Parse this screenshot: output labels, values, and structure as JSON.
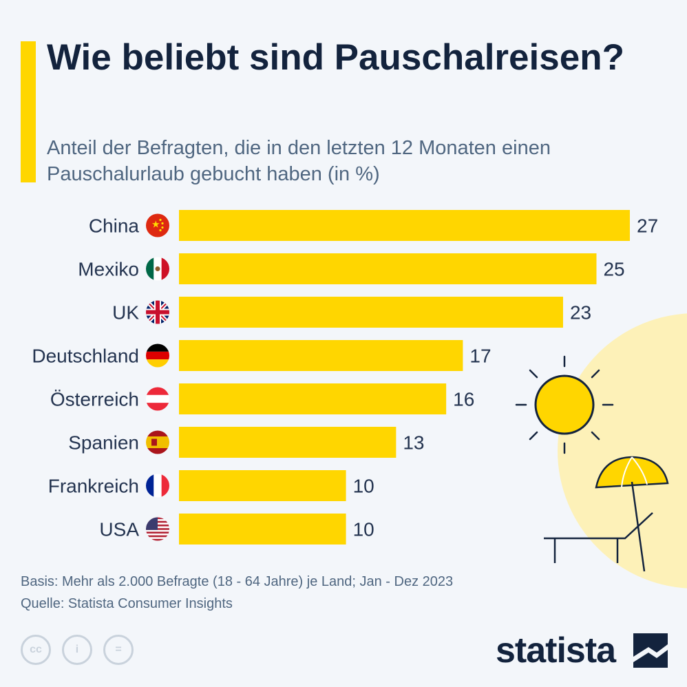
{
  "title": "Wie beliebt sind Pauschalreisen?",
  "subtitle": "Anteil der Befragten, die in den letzten 12 Monaten einen Pauschalurlaub gebucht haben (in %)",
  "colors": {
    "bar": "#ffd600",
    "accent": "#ffd600",
    "title": "#13233d",
    "subtitle": "#4f6680"
  },
  "chart_data": {
    "type": "bar",
    "orientation": "horizontal",
    "categories": [
      "China",
      "Mexiko",
      "UK",
      "Deutschland",
      "Österreich",
      "Spanien",
      "Frankreich",
      "USA"
    ],
    "icons": [
      "flag-china-icon",
      "flag-mexico-icon",
      "flag-uk-icon",
      "flag-germany-icon",
      "flag-austria-icon",
      "flag-spain-icon",
      "flag-france-icon",
      "flag-usa-icon"
    ],
    "values": [
      27,
      25,
      23,
      17,
      16,
      13,
      10,
      10
    ],
    "data_labels": [
      "27",
      "25",
      "23",
      "17",
      "16",
      "13",
      "10",
      "10"
    ],
    "xlim": [
      0,
      27
    ],
    "grid": false,
    "legend": "none"
  },
  "footer": {
    "basis": "Basis: Mehr als 2.000 Befragte (18 - 64 Jahre) je Land; Jan - Dez 2023",
    "source": "Quelle: Statista Consumer Insights"
  },
  "license_icons": [
    "cc-icon",
    "attribution-icon",
    "no-derivatives-icon"
  ],
  "license_labels": [
    "cc",
    "i",
    "="
  ],
  "brand": {
    "name": "statista",
    "logo_icon": "statista-logo-icon"
  }
}
